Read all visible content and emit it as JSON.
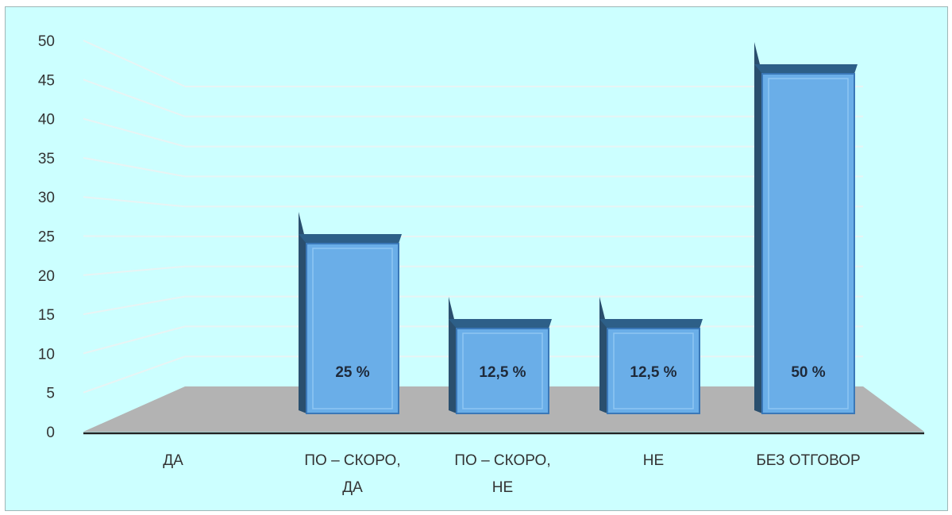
{
  "chart_data": {
    "type": "bar",
    "style": "3d-clustered-column",
    "categories": [
      [
        "ДА"
      ],
      [
        "ПО – СКОРО,",
        "ДА"
      ],
      [
        "ПО – СКОРО,",
        "НЕ"
      ],
      [
        "НЕ"
      ],
      [
        "БЕЗ ОТГОВОР"
      ]
    ],
    "values": [
      0,
      25,
      12.5,
      12.5,
      50
    ],
    "data_labels": [
      "",
      "25 %",
      "12,5 %",
      "12,5 %",
      "50 %"
    ],
    "ylim": [
      0,
      50
    ],
    "yticks": [
      "0",
      "5",
      "10",
      "15",
      "20",
      "25",
      "30",
      "35",
      "40",
      "45",
      "50"
    ],
    "grid": true,
    "legend": "none",
    "colors": {
      "background": "#ccffff",
      "bar_front": "#6aaee8",
      "bar_top": "#2d5f88",
      "bar_side": "#2a4f6e",
      "floor": "#b3b3b3",
      "grid": "#e8f4f4"
    }
  }
}
